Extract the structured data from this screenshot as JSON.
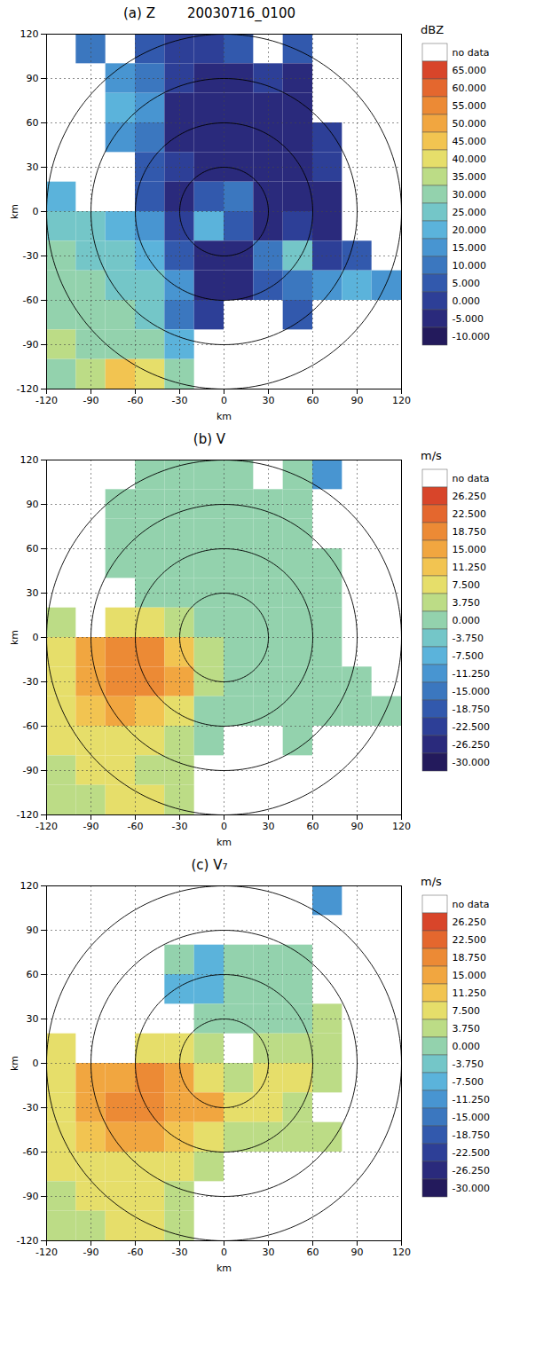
{
  "chart_data": [
    {
      "type": "heatmap",
      "title": "(a) Z",
      "subtitle": "20030716_0100",
      "x_label": "km",
      "y_label": "km",
      "xlim": [
        -120,
        120
      ],
      "ylim": [
        -120,
        120
      ],
      "xticks": [
        -120,
        -90,
        -60,
        -30,
        0,
        30,
        60,
        90,
        120
      ],
      "yticks": [
        -120,
        -90,
        -60,
        -30,
        0,
        30,
        60,
        90,
        120
      ],
      "grid": true,
      "range_rings": [
        30,
        60,
        90,
        120
      ],
      "cells": {
        "x": [
          -110,
          -90,
          -70,
          -50,
          -30,
          -10,
          10,
          30,
          50,
          70,
          90,
          110
        ],
        "y": [
          110,
          90,
          70,
          50,
          30,
          10,
          -10,
          -30,
          -50,
          -70,
          -90,
          -110
        ],
        "values": [
          [
            null,
            10,
            null,
            5,
            0,
            0,
            5,
            null,
            5,
            null,
            null,
            null
          ],
          [
            null,
            null,
            15,
            10,
            0,
            -5,
            -5,
            0,
            -5,
            null,
            null,
            null
          ],
          [
            null,
            null,
            20,
            15,
            -5,
            -5,
            -5,
            -5,
            -5,
            null,
            null,
            null
          ],
          [
            null,
            null,
            15,
            10,
            -5,
            -5,
            -5,
            -5,
            -5,
            0,
            null,
            null
          ],
          [
            null,
            null,
            null,
            5,
            0,
            -5,
            -5,
            -5,
            -5,
            0,
            null,
            null
          ],
          [
            20,
            null,
            null,
            5,
            -5,
            5,
            10,
            -5,
            -5,
            -5,
            null,
            null
          ],
          [
            25,
            25,
            20,
            15,
            0,
            20,
            5,
            -5,
            0,
            -5,
            null,
            null
          ],
          [
            30,
            25,
            25,
            20,
            5,
            -5,
            -5,
            10,
            25,
            0,
            5,
            null
          ],
          [
            30,
            30,
            25,
            25,
            15,
            -5,
            -5,
            5,
            10,
            15,
            20,
            15
          ],
          [
            30,
            30,
            30,
            25,
            10,
            0,
            null,
            null,
            5,
            null,
            null,
            null
          ],
          [
            35,
            30,
            30,
            30,
            20,
            null,
            null,
            null,
            null,
            null,
            null,
            null
          ],
          [
            30,
            35,
            45,
            40,
            30,
            null,
            null,
            null,
            null,
            null,
            null,
            null
          ]
        ]
      },
      "colorbar": {
        "label": "dBZ",
        "no_data_label": "no data",
        "ticks": [
          {
            "value": 65,
            "label": "65.000"
          },
          {
            "value": 60,
            "label": "60.000"
          },
          {
            "value": 55,
            "label": "55.000"
          },
          {
            "value": 50,
            "label": "50.000"
          },
          {
            "value": 45,
            "label": "45.000"
          },
          {
            "value": 40,
            "label": "40.000"
          },
          {
            "value": 35,
            "label": "35.000"
          },
          {
            "value": 30,
            "label": "30.000"
          },
          {
            "value": 25,
            "label": "25.000"
          },
          {
            "value": 20,
            "label": "20.000"
          },
          {
            "value": 15,
            "label": "15.000"
          },
          {
            "value": 10,
            "label": "10.000"
          },
          {
            "value": 5,
            "label": "5.000"
          },
          {
            "value": 0,
            "label": "0.000"
          },
          {
            "value": -5,
            "label": "-5.000"
          },
          {
            "value": -10,
            "label": "-10.000"
          }
        ],
        "colors": [
          "#d8452a",
          "#e4672e",
          "#ec8a35",
          "#f1a640",
          "#f2c451",
          "#e6de6a",
          "#bcdc86",
          "#93d2ad",
          "#74c6c8",
          "#5bb3db",
          "#4895d1",
          "#3b77bf",
          "#3259ad",
          "#2d3f97",
          "#2a2a7c",
          "#231a5c"
        ]
      }
    },
    {
      "type": "heatmap",
      "title": "(b) V",
      "x_label": "km",
      "y_label": "km",
      "xlim": [
        -120,
        120
      ],
      "ylim": [
        -120,
        120
      ],
      "xticks": [
        -120,
        -90,
        -60,
        -30,
        0,
        30,
        60,
        90,
        120
      ],
      "yticks": [
        -120,
        -90,
        -60,
        -30,
        0,
        30,
        60,
        90,
        120
      ],
      "grid": true,
      "range_rings": [
        30,
        60,
        90,
        120
      ],
      "cells": {
        "x": [
          -110,
          -90,
          -70,
          -50,
          -30,
          -10,
          10,
          30,
          50,
          70,
          90,
          110
        ],
        "y": [
          110,
          90,
          70,
          50,
          30,
          10,
          -10,
          -30,
          -50,
          -70,
          -90,
          -110
        ],
        "values": [
          [
            null,
            null,
            null,
            0,
            0,
            0,
            0,
            null,
            0,
            -8,
            null,
            null
          ],
          [
            null,
            null,
            2,
            0,
            0,
            0,
            0,
            0,
            0,
            null,
            null,
            null
          ],
          [
            null,
            null,
            0,
            0,
            0,
            0,
            0,
            0,
            0,
            null,
            null,
            null
          ],
          [
            null,
            null,
            0,
            0,
            0,
            0,
            0,
            0,
            0,
            0,
            null,
            null
          ],
          [
            null,
            null,
            null,
            0,
            2,
            0,
            0,
            0,
            0,
            0,
            null,
            null
          ],
          [
            5,
            null,
            8,
            10,
            5,
            0,
            0,
            0,
            0,
            0,
            null,
            null
          ],
          [
            8,
            15,
            20,
            20,
            12,
            5,
            0,
            0,
            0,
            0,
            null,
            null
          ],
          [
            10,
            18,
            22,
            20,
            15,
            5,
            0,
            0,
            0,
            0,
            0,
            null
          ],
          [
            8,
            12,
            15,
            12,
            8,
            2,
            0,
            0,
            0,
            0,
            0,
            0
          ],
          [
            8,
            8,
            10,
            8,
            5,
            2,
            null,
            null,
            0,
            null,
            null,
            null
          ],
          [
            5,
            8,
            8,
            5,
            5,
            null,
            null,
            null,
            null,
            null,
            null,
            null
          ],
          [
            5,
            5,
            8,
            8,
            5,
            null,
            null,
            null,
            null,
            null,
            null,
            null
          ]
        ]
      },
      "colorbar": {
        "label": "m/s",
        "no_data_label": "no data",
        "ticks": [
          {
            "value": 26.25,
            "label": "26.250"
          },
          {
            "value": 22.5,
            "label": "22.500"
          },
          {
            "value": 18.75,
            "label": "18.750"
          },
          {
            "value": 15,
            "label": "15.000"
          },
          {
            "value": 11.25,
            "label": "11.250"
          },
          {
            "value": 7.5,
            "label": "7.500"
          },
          {
            "value": 3.75,
            "label": "3.750"
          },
          {
            "value": 0,
            "label": "0.000"
          },
          {
            "value": -3.75,
            "label": "-3.750"
          },
          {
            "value": -7.5,
            "label": "-7.500"
          },
          {
            "value": -11.25,
            "label": "-11.250"
          },
          {
            "value": -15,
            "label": "-15.000"
          },
          {
            "value": -18.75,
            "label": "-18.750"
          },
          {
            "value": -22.5,
            "label": "-22.500"
          },
          {
            "value": -26.25,
            "label": "-26.250"
          },
          {
            "value": -30,
            "label": "-30.000"
          }
        ],
        "colors": [
          "#d8452a",
          "#e4672e",
          "#ec8a35",
          "#f1a640",
          "#f2c451",
          "#e6de6a",
          "#bcdc86",
          "#93d2ad",
          "#74c6c8",
          "#5bb3db",
          "#4895d1",
          "#3b77bf",
          "#3259ad",
          "#2d3f97",
          "#2a2a7c",
          "#231a5c"
        ]
      }
    },
    {
      "type": "heatmap",
      "title": "(c) V₇",
      "x_label": "km",
      "y_label": "km",
      "xlim": [
        -120,
        120
      ],
      "ylim": [
        -120,
        120
      ],
      "xticks": [
        -120,
        -90,
        -60,
        -30,
        0,
        30,
        60,
        90,
        120
      ],
      "yticks": [
        -120,
        -90,
        -60,
        -30,
        0,
        30,
        60,
        90,
        120
      ],
      "grid": true,
      "range_rings": [
        30,
        60,
        90,
        120
      ],
      "cells": {
        "x": [
          -110,
          -90,
          -70,
          -50,
          -30,
          -10,
          10,
          30,
          50,
          70,
          90,
          110
        ],
        "y": [
          110,
          90,
          70,
          50,
          30,
          10,
          -10,
          -30,
          -50,
          -70,
          -90,
          -110
        ],
        "values": [
          [
            null,
            null,
            null,
            null,
            null,
            null,
            null,
            null,
            null,
            -8,
            null,
            null
          ],
          [
            null,
            null,
            null,
            null,
            null,
            null,
            null,
            null,
            null,
            null,
            null,
            null
          ],
          [
            null,
            null,
            null,
            null,
            0,
            -4,
            0,
            0,
            0,
            null,
            null,
            null
          ],
          [
            null,
            null,
            null,
            null,
            -4,
            -4,
            0,
            0,
            0,
            null,
            null,
            null
          ],
          [
            null,
            null,
            null,
            null,
            null,
            0,
            0,
            2,
            0,
            5,
            null,
            null
          ],
          [
            8,
            null,
            null,
            10,
            8,
            5,
            null,
            5,
            5,
            5,
            null,
            null
          ],
          [
            10,
            15,
            18,
            20,
            15,
            10,
            5,
            10,
            8,
            5,
            null,
            null
          ],
          [
            10,
            15,
            20,
            22,
            18,
            15,
            10,
            8,
            5,
            null,
            null,
            null
          ],
          [
            8,
            12,
            15,
            15,
            12,
            10,
            5,
            5,
            5,
            5,
            null,
            null
          ],
          [
            8,
            8,
            10,
            10,
            8,
            5,
            null,
            null,
            null,
            null,
            null,
            null
          ],
          [
            5,
            8,
            8,
            8,
            5,
            null,
            null,
            null,
            null,
            null,
            null,
            null
          ],
          [
            5,
            5,
            8,
            8,
            5,
            null,
            null,
            null,
            null,
            null,
            null,
            null
          ]
        ]
      },
      "colorbar": {
        "label": "m/s",
        "no_data_label": "no data",
        "ticks": [
          {
            "value": 26.25,
            "label": "26.250"
          },
          {
            "value": 22.5,
            "label": "22.500"
          },
          {
            "value": 18.75,
            "label": "18.750"
          },
          {
            "value": 15,
            "label": "15.000"
          },
          {
            "value": 11.25,
            "label": "11.250"
          },
          {
            "value": 7.5,
            "label": "7.500"
          },
          {
            "value": 3.75,
            "label": "3.750"
          },
          {
            "value": 0,
            "label": "0.000"
          },
          {
            "value": -3.75,
            "label": "-3.750"
          },
          {
            "value": -7.5,
            "label": "-7.500"
          },
          {
            "value": -11.25,
            "label": "-11.250"
          },
          {
            "value": -15,
            "label": "-15.000"
          },
          {
            "value": -18.75,
            "label": "-18.750"
          },
          {
            "value": -22.5,
            "label": "-22.500"
          },
          {
            "value": -26.25,
            "label": "-26.250"
          },
          {
            "value": -30,
            "label": "-30.000"
          }
        ],
        "colors": [
          "#d8452a",
          "#e4672e",
          "#ec8a35",
          "#f1a640",
          "#f2c451",
          "#e6de6a",
          "#bcdc86",
          "#93d2ad",
          "#74c6c8",
          "#5bb3db",
          "#4895d1",
          "#3b77bf",
          "#3259ad",
          "#2d3f97",
          "#2a2a7c",
          "#231a5c"
        ]
      }
    }
  ]
}
